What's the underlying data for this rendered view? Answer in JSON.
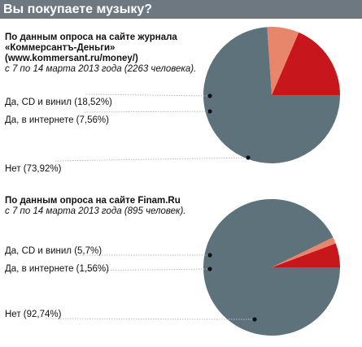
{
  "title": "Вы покупаете музыку?",
  "colors": {
    "header": "#6d7880",
    "panel": "#ffffff",
    "gap": "#ffffff",
    "cd": "#c8161d",
    "internet": "#e8866c",
    "no": "#5e727c",
    "leader": "#b9bcc0"
  },
  "panels": [
    {
      "source_bold": "По данным опроса на сайте журнала «Коммерсантъ-Деньги» (www.kommersant.ru/money/)",
      "source_italic": "с 7 по 14 марта 2013 года (2263 человека).",
      "labels": [
        "Да, CD и винил (18,52%)",
        "Да, в интернете (7,56%)",
        "Нет (73,92%)"
      ]
    },
    {
      "source_bold": "По данным опроса на сайте Finam.Ru",
      "source_italic": "с 7 по 14 марта 2013 года (895 человек).",
      "labels": [
        "Да, CD и винил (5,7%)",
        "Да, в интернете (1,56%)",
        "Нет (92,74%)"
      ]
    }
  ],
  "chart_data": [
    {
      "type": "pie",
      "title": "Вы покупаете музыку?",
      "categories": [
        "Да, CD и винил",
        "Да, в интернете",
        "Нет"
      ],
      "values": [
        18.52,
        7.56,
        73.92
      ]
    },
    {
      "type": "pie",
      "title": "Вы покупаете музыку?",
      "categories": [
        "Да, CD и винил",
        "Да, в интернете",
        "Нет"
      ],
      "values": [
        5.7,
        1.56,
        92.74
      ]
    }
  ]
}
